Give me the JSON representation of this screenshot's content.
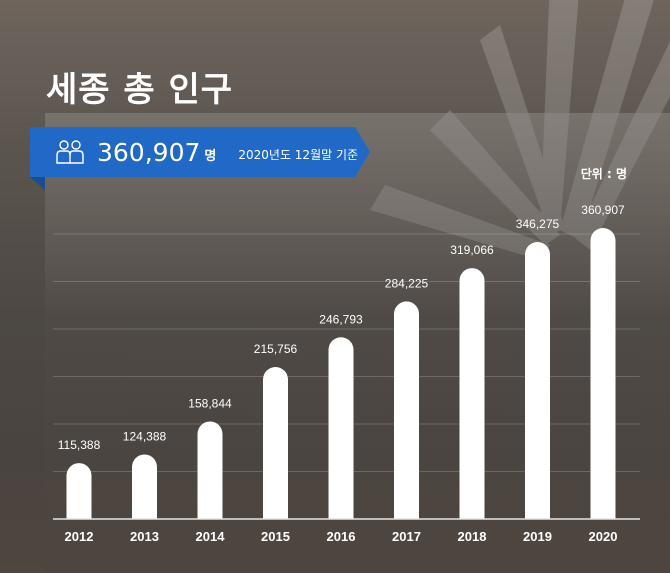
{
  "title": "세종 총 인구",
  "highlight": {
    "value": "360,907",
    "unit": "명",
    "as_of": "2020년도 12월말 기준",
    "icon": "people-icon"
  },
  "unit_label": "단위 : 명",
  "colors": {
    "ribbon": "#2169c6",
    "bar": "#ffffff"
  },
  "chart_data": {
    "type": "bar",
    "title": "세종 총 인구",
    "categories": [
      "2012",
      "2013",
      "2014",
      "2015",
      "2016",
      "2017",
      "2018",
      "2019",
      "2020"
    ],
    "values": [
      115388,
      124388,
      158844,
      215756,
      246793,
      284225,
      319066,
      346275,
      360907
    ],
    "labels": [
      "115,388",
      "124,388",
      "158,844",
      "215,756",
      "246,793",
      "284,225",
      "319,066",
      "346,275",
      "360,907"
    ],
    "xlabel": "",
    "ylabel": "단위 : 명",
    "ylim": [
      57000,
      360907
    ],
    "grid": true
  }
}
